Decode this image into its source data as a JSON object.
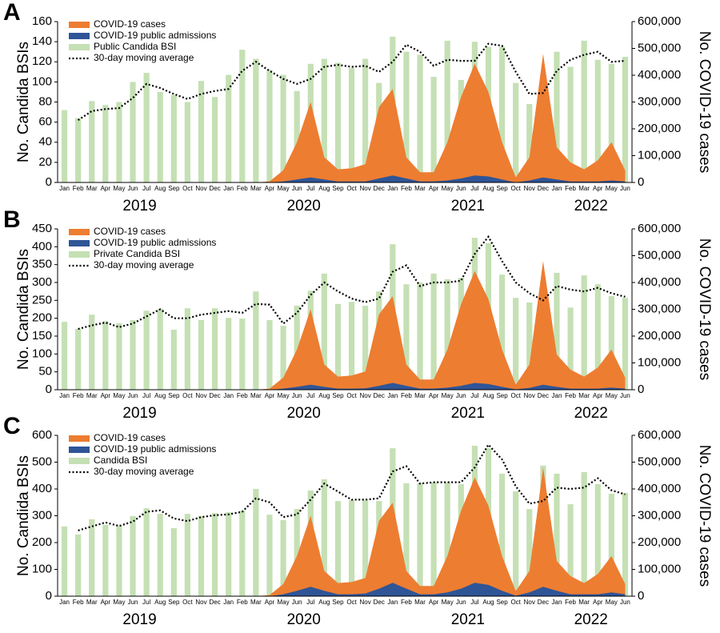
{
  "chart_data": [
    {
      "panel_label": "A",
      "type": "bar",
      "categories": [
        "Jan",
        "Feb",
        "Mar",
        "Apr",
        "May",
        "Jun",
        "Jul",
        "Aug",
        "Sep",
        "Oct",
        "Nov",
        "Dec",
        "Jan",
        "Feb",
        "Mar",
        "Apr",
        "May",
        "Jun",
        "Jul",
        "Aug",
        "Sep",
        "Oct",
        "Nov",
        "Dec",
        "Jan",
        "Feb",
        "Mar",
        "Apr",
        "May",
        "Jun",
        "Jul",
        "Aug",
        "Sep",
        "Oct",
        "Nov",
        "Dec",
        "Jan",
        "Feb",
        "Mar",
        "Apr",
        "May",
        "Jun"
      ],
      "year_labels": [
        "2019",
        "2020",
        "2021",
        "2022"
      ],
      "y_label": "No. Candida BSIs",
      "y2_label": "No. COVID-19 cases",
      "ylim": [
        0,
        160
      ],
      "yticks": [
        0,
        20,
        40,
        60,
        80,
        100,
        120,
        140,
        160
      ],
      "y2lim": [
        0,
        600000
      ],
      "y2ticks": [
        0,
        {
          "value": 100000,
          "label": "100,000"
        },
        {
          "value": 200000,
          "label": "200,000"
        },
        {
          "value": 300000,
          "label": "300,000"
        },
        {
          "value": 400000,
          "label": "400,000"
        },
        {
          "value": 500000,
          "label": "500,000"
        },
        {
          "value": 600000,
          "label": "600,000"
        }
      ],
      "series": [
        {
          "name": "COVID-19 cases",
          "type": "area",
          "axis": "y2",
          "color": "#ed7d31",
          "values": [
            0,
            0,
            0,
            0,
            0,
            0,
            0,
            0,
            0,
            0,
            0,
            0,
            0,
            0,
            0,
            4000,
            45000,
            150000,
            300000,
            94000,
            49000,
            53000,
            68000,
            281000,
            349000,
            94000,
            38000,
            38000,
            150000,
            319000,
            443000,
            338000,
            150000,
            19000,
            94000,
            480000,
            131000,
            75000,
            49000,
            83000,
            150000,
            45000
          ]
        },
        {
          "name": "COVID-19 public admissions",
          "type": "area",
          "axis": "y",
          "color": "#2f5597",
          "values": [
            0,
            0,
            0,
            0,
            0,
            0,
            0,
            0,
            0,
            0,
            0,
            0,
            0,
            0,
            0,
            0,
            1,
            3,
            5,
            3,
            1,
            1,
            1,
            4,
            7,
            4,
            1,
            1,
            2,
            4,
            7,
            6,
            3,
            0,
            2,
            5,
            3,
            1,
            1,
            1,
            2,
            1
          ]
        },
        {
          "name": "Public Candida BSI",
          "type": "bar",
          "axis": "y",
          "color": "#c5e0b4",
          "values": [
            72,
            64,
            81,
            77,
            80,
            100,
            109,
            90,
            87,
            80,
            101,
            85,
            107,
            132,
            123,
            112,
            107,
            91,
            118,
            123,
            119,
            114,
            123,
            99,
            145,
            130,
            127,
            105,
            141,
            102,
            140,
            135,
            135,
            99,
            78,
            97,
            130,
            115,
            141,
            122,
            118,
            125
          ]
        },
        {
          "name": "30-day moving average",
          "type": "line",
          "axis": "y",
          "color": "#000000",
          "values": [
            null,
            62,
            71,
            73,
            74,
            84,
            98,
            94,
            88,
            83,
            88,
            91,
            93,
            111,
            120,
            111,
            103,
            98,
            103,
            115,
            117,
            115,
            116,
            110,
            120,
            137,
            130,
            116,
            122,
            121,
            121,
            138,
            136,
            110,
            88,
            89,
            111,
            122,
            127,
            130,
            120,
            121
          ]
        }
      ]
    },
    {
      "panel_label": "B",
      "type": "bar",
      "categories": [
        "Jan",
        "Feb",
        "Mar",
        "Apr",
        "May",
        "Jun",
        "Jul",
        "Aug",
        "Sep",
        "Oct",
        "Nov",
        "Dec",
        "Jan",
        "Feb",
        "Mar",
        "Apr",
        "May",
        "Jun",
        "Jul",
        "Aug",
        "Sep",
        "Oct",
        "Nov",
        "Dec",
        "Jan",
        "Feb",
        "Mar",
        "Apr",
        "May",
        "Jun",
        "Jul",
        "Aug",
        "Sep",
        "Oct",
        "Nov",
        "Dec",
        "Jan",
        "Feb",
        "Mar",
        "Apr",
        "May",
        "Jun"
      ],
      "year_labels": [
        "2019",
        "2020",
        "2021",
        "2022"
      ],
      "y_label": "No. Candida BSIs",
      "y2_label": "No. COVID-19 cases",
      "ylim": [
        0,
        450
      ],
      "yticks": [
        0,
        50,
        100,
        150,
        200,
        250,
        300,
        350,
        400,
        450
      ],
      "y2lim": [
        0,
        600000
      ],
      "y2ticks": [
        0,
        {
          "value": 100000,
          "label": "100,000"
        },
        {
          "value": 200000,
          "label": "200,000"
        },
        {
          "value": 300000,
          "label": "300,000"
        },
        {
          "value": 400000,
          "label": "400,000"
        },
        {
          "value": 500000,
          "label": "500,000"
        },
        {
          "value": 600000,
          "label": "600,000"
        }
      ],
      "series": [
        {
          "name": "COVID-19 cases",
          "type": "area",
          "axis": "y2",
          "color": "#ed7d31",
          "values": [
            0,
            0,
            0,
            0,
            0,
            0,
            0,
            0,
            0,
            0,
            0,
            0,
            0,
            0,
            0,
            4000,
            45000,
            150000,
            300000,
            94000,
            49000,
            53000,
            68000,
            281000,
            349000,
            94000,
            38000,
            38000,
            150000,
            319000,
            443000,
            338000,
            150000,
            19000,
            94000,
            480000,
            131000,
            75000,
            49000,
            83000,
            150000,
            45000
          ]
        },
        {
          "name": "COVID-19 public admissions",
          "type": "area",
          "axis": "y",
          "color": "#2f5597",
          "values": [
            0,
            0,
            0,
            0,
            0,
            0,
            0,
            0,
            0,
            0,
            0,
            0,
            0,
            0,
            0,
            0,
            3,
            8,
            14,
            8,
            3,
            3,
            4,
            11,
            19,
            11,
            3,
            3,
            6,
            11,
            19,
            16,
            8,
            1,
            5,
            14,
            8,
            3,
            3,
            3,
            6,
            3
          ]
        },
        {
          "name": "Private Candida BSI",
          "type": "bar",
          "axis": "y",
          "color": "#c5e0b4",
          "values": [
            190,
            170,
            210,
            192,
            186,
            195,
            221,
            226,
            168,
            228,
            195,
            228,
            201,
            199,
            275,
            195,
            179,
            235,
            277,
            325,
            240,
            246,
            235,
            275,
            407,
            295,
            300,
            325,
            309,
            313,
            425,
            410,
            322,
            257,
            244,
            306,
            327,
            230,
            320,
            295,
            262,
            257
          ]
        },
        {
          "name": "30-day moving average",
          "type": "line",
          "axis": "y",
          "color": "#000000",
          "values": [
            null,
            170,
            180,
            188,
            175,
            185,
            205,
            225,
            200,
            200,
            210,
            215,
            220,
            215,
            240,
            238,
            185,
            215,
            265,
            300,
            275,
            255,
            245,
            255,
            330,
            348,
            290,
            300,
            300,
            305,
            380,
            428,
            360,
            300,
            270,
            250,
            290,
            280,
            275,
            285,
            270,
            260
          ]
        }
      ]
    },
    {
      "panel_label": "C",
      "type": "bar",
      "categories": [
        "Jan",
        "Feb",
        "Mar",
        "Apr",
        "May",
        "Jun",
        "Jul",
        "Aug",
        "Sep",
        "Oct",
        "Nov",
        "Dec",
        "Jan",
        "Feb",
        "Mar",
        "Apr",
        "May",
        "Jun",
        "Jul",
        "Aug",
        "Sep",
        "Oct",
        "Nov",
        "Dec",
        "Jan",
        "Feb",
        "Mar",
        "Apr",
        "May",
        "Jun",
        "Jul",
        "Aug",
        "Sep",
        "Oct",
        "Nov",
        "Dec",
        "Jan",
        "Feb",
        "Mar",
        "Apr",
        "May",
        "Jun"
      ],
      "year_labels": [
        "2019",
        "2020",
        "2021",
        "2022"
      ],
      "y_label": "No. Candida BSIs",
      "y2_label": "No. COVID-19 cases",
      "ylim": [
        0,
        600
      ],
      "yticks": [
        0,
        100,
        200,
        300,
        400,
        500,
        600
      ],
      "y2lim": [
        0,
        600000
      ],
      "y2ticks": [
        0,
        {
          "value": 100000,
          "label": "100,000"
        },
        {
          "value": 200000,
          "label": "200,000"
        },
        {
          "value": 300000,
          "label": "300,000"
        },
        {
          "value": 400000,
          "label": "400,000"
        },
        {
          "value": 500000,
          "label": "500,000"
        },
        {
          "value": 600000,
          "label": "600,000"
        }
      ],
      "series": [
        {
          "name": "COVID-19 cases",
          "type": "area",
          "axis": "y2",
          "color": "#ed7d31",
          "values": [
            0,
            0,
            0,
            0,
            0,
            0,
            0,
            0,
            0,
            0,
            0,
            0,
            0,
            0,
            0,
            4000,
            45000,
            150000,
            300000,
            94000,
            49000,
            53000,
            68000,
            281000,
            349000,
            94000,
            38000,
            38000,
            150000,
            319000,
            443000,
            338000,
            150000,
            19000,
            94000,
            480000,
            131000,
            75000,
            49000,
            83000,
            150000,
            45000
          ]
        },
        {
          "name": "COVID-19 public admissions",
          "type": "area",
          "axis": "y",
          "color": "#2f5597",
          "values": [
            0,
            0,
            0,
            0,
            0,
            0,
            0,
            0,
            0,
            0,
            0,
            0,
            0,
            0,
            0,
            0,
            7,
            20,
            35,
            20,
            7,
            7,
            10,
            28,
            50,
            28,
            7,
            7,
            14,
            28,
            50,
            42,
            20,
            2,
            14,
            35,
            20,
            7,
            7,
            7,
            14,
            7
          ]
        },
        {
          "name": "Candida BSI",
          "type": "bar",
          "axis": "y",
          "color": "#c5e0b4",
          "values": [
            260,
            230,
            287,
            266,
            263,
            299,
            328,
            307,
            254,
            307,
            299,
            310,
            313,
            319,
            400,
            304,
            284,
            325,
            394,
            436,
            355,
            358,
            358,
            355,
            552,
            421,
            421,
            424,
            424,
            418,
            561,
            552,
            457,
            391,
            325,
            487,
            457,
            343,
            463,
            418,
            382,
            385
          ]
        },
        {
          "name": "30-day moving average",
          "type": "line",
          "axis": "y",
          "color": "#000000",
          "values": [
            null,
            245,
            260,
            275,
            262,
            278,
            315,
            320,
            290,
            280,
            295,
            302,
            305,
            315,
            365,
            350,
            295,
            305,
            360,
            420,
            390,
            360,
            360,
            365,
            465,
            485,
            420,
            425,
            425,
            425,
            480,
            565,
            510,
            410,
            345,
            355,
            405,
            400,
            405,
            440,
            395,
            380
          ]
        }
      ]
    }
  ]
}
